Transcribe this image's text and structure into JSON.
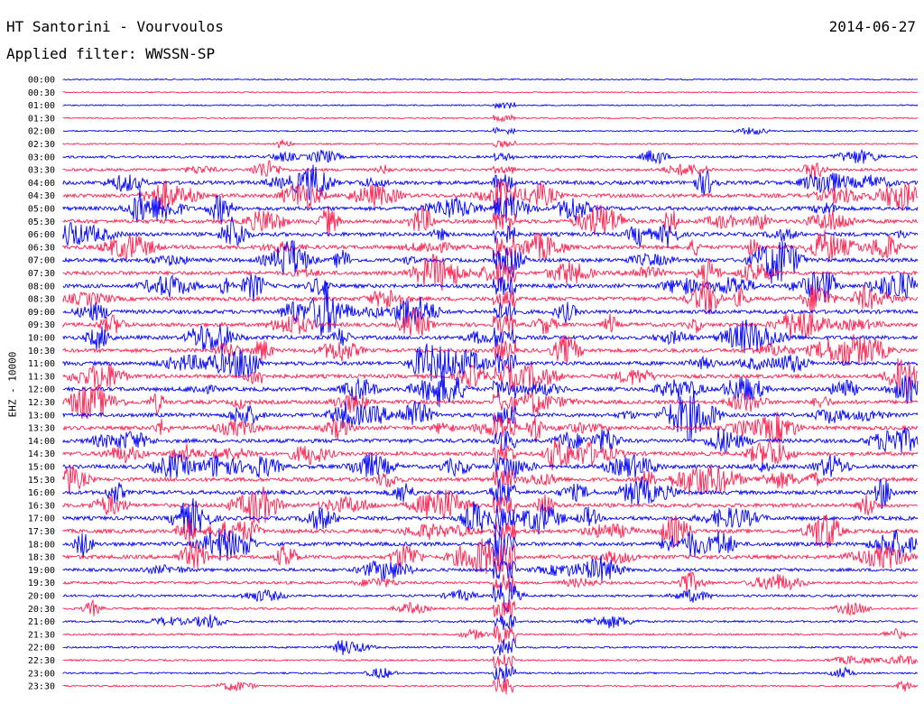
{
  "header": {
    "title": "HT Santorini - Vourvoulos",
    "date": "2014-06-27",
    "filter": "Applied filter: WWSSN-SP"
  },
  "chart_data": {
    "type": "line",
    "title": "HT Santorini - Vourvoulos",
    "subtitle": "Applied filter: WWSSN-SP",
    "date": "2014-06-27",
    "ylabel": "EHZ - 10000",
    "xlabel": "",
    "y_ticks": [
      "00:00",
      "00:30",
      "01:00",
      "01:30",
      "02:00",
      "02:30",
      "03:00",
      "03:30",
      "04:00",
      "04:30",
      "05:00",
      "05:30",
      "06:00",
      "06:30",
      "07:00",
      "07:30",
      "08:00",
      "08:30",
      "09:00",
      "09:30",
      "10:00",
      "10:30",
      "11:00",
      "11:30",
      "12:00",
      "12:30",
      "13:00",
      "13:30",
      "14:00",
      "14:30",
      "15:00",
      "15:30",
      "16:00",
      "16:30",
      "17:00",
      "17:30",
      "18:00",
      "18:30",
      "19:00",
      "19:30",
      "20:00",
      "20:30",
      "21:00",
      "21:30",
      "22:00",
      "22:30",
      "23:00",
      "23:30"
    ],
    "trace_colors": [
      "#0000ff",
      "#ff1f4f"
    ],
    "activity_level_by_row": [
      0.05,
      0.05,
      0.05,
      0.05,
      0.08,
      0.12,
      0.45,
      0.55,
      0.9,
      0.95,
      0.95,
      0.95,
      0.95,
      0.95,
      0.95,
      0.95,
      0.95,
      0.95,
      0.95,
      0.95,
      0.95,
      0.95,
      0.95,
      0.95,
      0.95,
      0.95,
      0.95,
      0.95,
      0.95,
      0.95,
      0.95,
      0.95,
      0.95,
      0.95,
      0.95,
      0.95,
      0.95,
      0.95,
      0.7,
      0.55,
      0.4,
      0.35,
      0.3,
      0.25,
      0.25,
      0.2,
      0.2,
      0.2
    ],
    "grid": false
  }
}
